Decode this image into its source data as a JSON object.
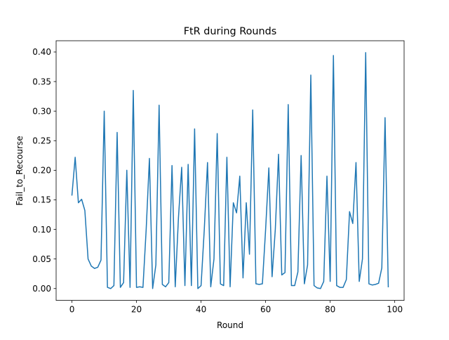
{
  "chart_data": {
    "type": "line",
    "title": "FtR during Rounds",
    "xlabel": "Round",
    "ylabel": "Fail_to_Recourse",
    "xlim": [
      -4.9,
      102.9
    ],
    "ylim": [
      -0.02,
      0.419
    ],
    "xticks": [
      0,
      20,
      40,
      60,
      80,
      100
    ],
    "xtick_labels": [
      "0",
      "20",
      "40",
      "60",
      "80",
      "100"
    ],
    "yticks": [
      0.0,
      0.05,
      0.1,
      0.15,
      0.2,
      0.25,
      0.3,
      0.35,
      0.4
    ],
    "ytick_labels": [
      "0.00",
      "0.05",
      "0.10",
      "0.15",
      "0.20",
      "0.25",
      "0.30",
      "0.35",
      "0.40"
    ],
    "grid": false,
    "series": [
      {
        "color": "#1f77b4",
        "x": [
          0,
          1,
          2,
          3,
          4,
          5,
          6,
          7,
          8,
          9,
          10,
          11,
          12,
          13,
          14,
          15,
          16,
          17,
          18,
          19,
          20,
          21,
          22,
          23,
          24,
          25,
          26,
          27,
          28,
          29,
          30,
          31,
          32,
          33,
          34,
          35,
          36,
          37,
          38,
          39,
          40,
          41,
          42,
          43,
          44,
          45,
          46,
          47,
          48,
          49,
          50,
          51,
          52,
          53,
          54,
          55,
          56,
          57,
          58,
          59,
          60,
          61,
          62,
          63,
          64,
          65,
          66,
          67,
          68,
          69,
          70,
          71,
          72,
          73,
          74,
          75,
          76,
          77,
          78,
          79,
          80,
          81,
          82,
          83,
          84,
          85,
          86,
          87,
          88,
          89,
          90,
          91,
          92,
          93,
          94,
          95,
          96,
          97,
          98
        ],
        "y": [
          0.158,
          0.222,
          0.145,
          0.151,
          0.132,
          0.05,
          0.038,
          0.034,
          0.036,
          0.048,
          0.3,
          0.002,
          0.0,
          0.005,
          0.264,
          0.002,
          0.01,
          0.2,
          0.002,
          0.335,
          0.002,
          0.003,
          0.002,
          0.1,
          0.22,
          0.0,
          0.04,
          0.31,
          0.007,
          0.003,
          0.01,
          0.208,
          0.003,
          0.12,
          0.205,
          0.005,
          0.21,
          0.005,
          0.27,
          0.0,
          0.005,
          0.1,
          0.213,
          0.003,
          0.05,
          0.262,
          0.008,
          0.005,
          0.222,
          0.003,
          0.145,
          0.128,
          0.19,
          0.018,
          0.145,
          0.058,
          0.302,
          0.008,
          0.007,
          0.008,
          0.1,
          0.204,
          0.02,
          0.1,
          0.227,
          0.023,
          0.027,
          0.311,
          0.005,
          0.005,
          0.028,
          0.225,
          0.008,
          0.04,
          0.361,
          0.005,
          0.001,
          0.0,
          0.012,
          0.19,
          0.012,
          0.394,
          0.005,
          0.002,
          0.002,
          0.015,
          0.13,
          0.11,
          0.213,
          0.012,
          0.05,
          0.399,
          0.008,
          0.006,
          0.007,
          0.009,
          0.035,
          0.289,
          0.003
        ]
      }
    ]
  }
}
